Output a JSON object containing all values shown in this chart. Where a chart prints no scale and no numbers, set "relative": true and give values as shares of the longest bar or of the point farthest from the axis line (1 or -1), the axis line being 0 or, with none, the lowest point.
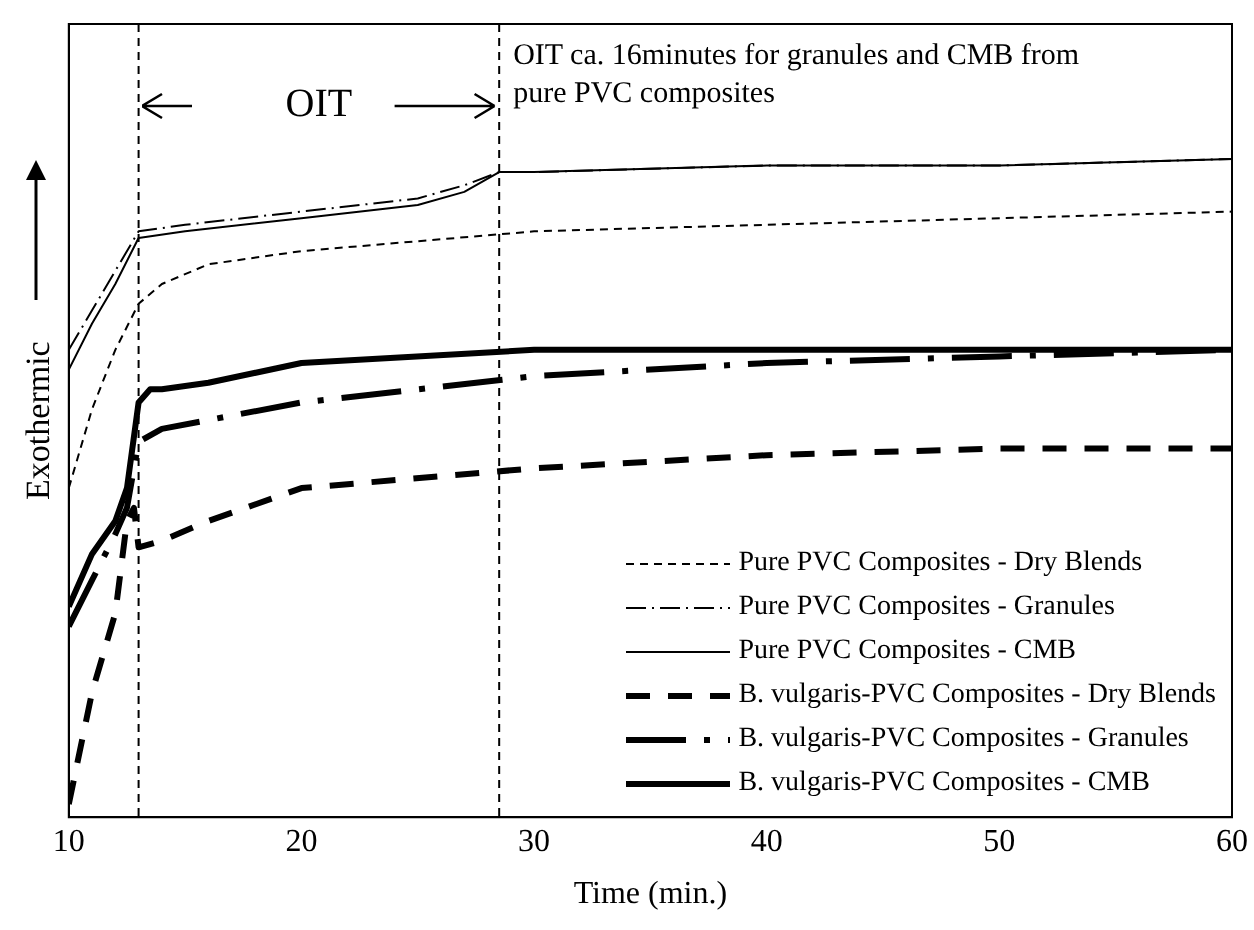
{
  "chart_data": {
    "type": "line",
    "relative": true,
    "xlabel": "Time (min.)",
    "ylabel": "Exothermic",
    "xlim": [
      10,
      60
    ],
    "xticks": [
      10,
      20,
      30,
      40,
      50,
      60
    ],
    "grid": false,
    "legend": "bottom right",
    "marker": "none",
    "ref_lines": [
      {
        "axis": "x",
        "value": 13,
        "line_style": "dashed",
        "color": "#000000"
      },
      {
        "axis": "x",
        "value": 28.5,
        "line_style": "dashed",
        "color": "#000000"
      }
    ],
    "annotations": [
      "OIT",
      "OIT ca. 16minutes for granules and CMB from pure PVC composites"
    ],
    "series": [
      {
        "name": "Pure PVC Composites - Dry Blends",
        "color": "#000000",
        "line_style": "dashed",
        "x": [
          10,
          11,
          12,
          13,
          14,
          16,
          20,
          30,
          40,
          50,
          60
        ],
        "values": [
          0.5,
          0.62,
          0.71,
          0.78,
          0.81,
          0.84,
          0.86,
          0.89,
          0.9,
          0.91,
          0.92
        ]
      },
      {
        "name": "Pure PVC Composites - Granules",
        "color": "#000000",
        "line_style": "dash-dot",
        "x": [
          10,
          11,
          12,
          13,
          15,
          20,
          25,
          27,
          28.5,
          30,
          40,
          50,
          60
        ],
        "values": [
          0.71,
          0.77,
          0.83,
          0.89,
          0.9,
          0.92,
          0.94,
          0.96,
          0.98,
          0.98,
          0.99,
          0.99,
          1
        ]
      },
      {
        "name": "Pure PVC Composites - CMB",
        "color": "#000000",
        "line_style": "solid",
        "x": [
          10,
          11,
          12,
          13,
          15,
          20,
          25,
          27,
          28.5,
          30,
          40,
          50,
          60
        ],
        "values": [
          0.68,
          0.75,
          0.81,
          0.88,
          0.89,
          0.91,
          0.93,
          0.95,
          0.98,
          0.98,
          0.99,
          0.99,
          1
        ]
      },
      {
        "name": "B. vulgaris-PVC Composites - Dry Blends",
        "color": "#000000",
        "line_style": "dashed",
        "x": [
          10,
          11,
          12,
          12.5,
          12.8,
          13,
          14,
          16,
          20,
          30,
          40,
          50,
          60
        ],
        "values": [
          0.02,
          0.19,
          0.31,
          0.45,
          0.47,
          0.41,
          0.42,
          0.45,
          0.5,
          0.53,
          0.55,
          0.56,
          0.56
        ]
      },
      {
        "name": "B. vulgaris-PVC Composites - Granules",
        "color": "#000000",
        "line_style": "dash-dot",
        "x": [
          10,
          11,
          12,
          12.5,
          13,
          14,
          20,
          30,
          40,
          50,
          60
        ],
        "values": [
          0.29,
          0.36,
          0.43,
          0.47,
          0.57,
          0.59,
          0.63,
          0.67,
          0.69,
          0.7,
          0.71
        ]
      },
      {
        "name": "B. vulgaris-PVC Composites - CMB",
        "color": "#000000",
        "line_style": "solid",
        "x": [
          10,
          11,
          12,
          12.5,
          13,
          13.5,
          14,
          16,
          20,
          30,
          40,
          50,
          60
        ],
        "values": [
          0.32,
          0.4,
          0.45,
          0.5,
          0.63,
          0.65,
          0.65,
          0.66,
          0.69,
          0.71,
          0.71,
          0.71,
          0.71
        ]
      }
    ]
  }
}
